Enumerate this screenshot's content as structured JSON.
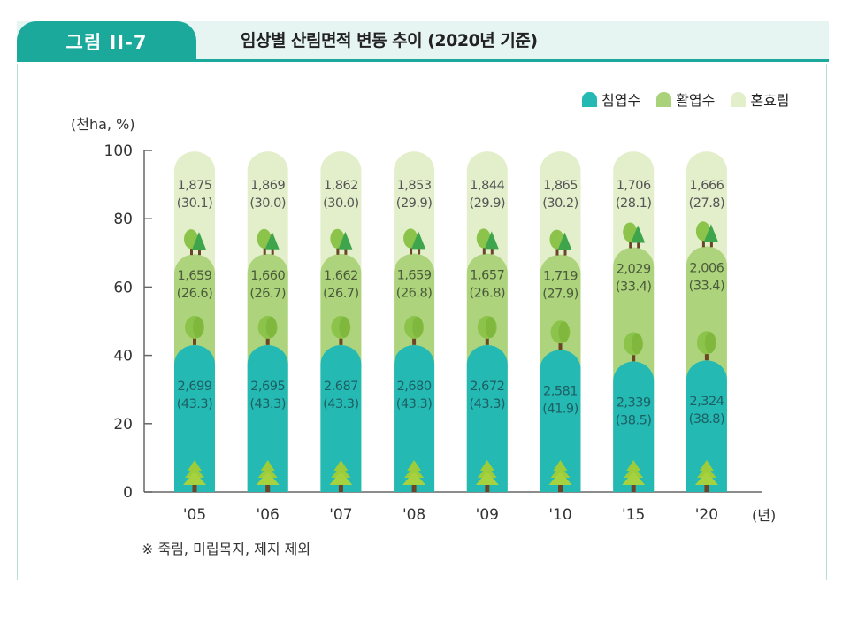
{
  "header": {
    "figure_label": "그림 II-7",
    "title": "임상별 산림면적 변동 추이 (2020년 기준)"
  },
  "colors": {
    "teal": "#1aa99a",
    "coniferous": "#25b9b3",
    "broadleaf": "#b0d57f",
    "mixed": "#e3efcb"
  },
  "chart_data": {
    "type": "bar",
    "stacked": true,
    "title": "임상별 산림면적 변동 추이 (2020년 기준)",
    "ylabel": "(천ha, %)",
    "xlabel": "(년)",
    "ylim": [
      0,
      100
    ],
    "yticks": [
      "0",
      "20",
      "40",
      "60",
      "80",
      "100"
    ],
    "categories": [
      "'05",
      "'06",
      "'07",
      "'08",
      "'09",
      "'10",
      "'15",
      "'20"
    ],
    "legend": {
      "position": "top-right",
      "entries": [
        "침엽수",
        "활엽수",
        "혼효림"
      ]
    },
    "series": [
      {
        "name": "침엽수",
        "values": [
          43.3,
          43.3,
          43.3,
          43.3,
          43.3,
          41.9,
          38.5,
          38.8
        ],
        "labels": [
          "2,699",
          "2,695",
          "2.687",
          "2,680",
          "2,672",
          "2,581",
          "2,339",
          "2,324"
        ],
        "pct_labels": [
          "(43.3)",
          "(43.3)",
          "(43.3)",
          "(43.3)",
          "(43.3)",
          "(41.9)",
          "(38.5)",
          "(38.8)"
        ]
      },
      {
        "name": "활엽수",
        "values": [
          26.6,
          26.7,
          26.7,
          26.8,
          26.8,
          27.9,
          33.4,
          33.4
        ],
        "labels": [
          "1,659",
          "1,660",
          "1,662",
          "1,659",
          "1,657",
          "1,719",
          "2,029",
          "2,006"
        ],
        "pct_labels": [
          "(26.6)",
          "(26.7)",
          "(26.7)",
          "(26.8)",
          "(26.8)",
          "(27.9)",
          "(33.4)",
          "(33.4)"
        ]
      },
      {
        "name": "혼효림",
        "values": [
          30.1,
          30.0,
          30.0,
          29.9,
          29.9,
          30.2,
          28.1,
          27.8
        ],
        "labels": [
          "1,875",
          "1,869",
          "1,862",
          "1,853",
          "1,844",
          "1,865",
          "1,706",
          "1,666"
        ],
        "pct_labels": [
          "(30.1)",
          "(30.0)",
          "(30.0)",
          "(29.9)",
          "(29.9)",
          "(30.2)",
          "(28.1)",
          "(27.8)"
        ]
      }
    ]
  },
  "footnote": "※ 죽림, 미립목지, 제지 제외"
}
